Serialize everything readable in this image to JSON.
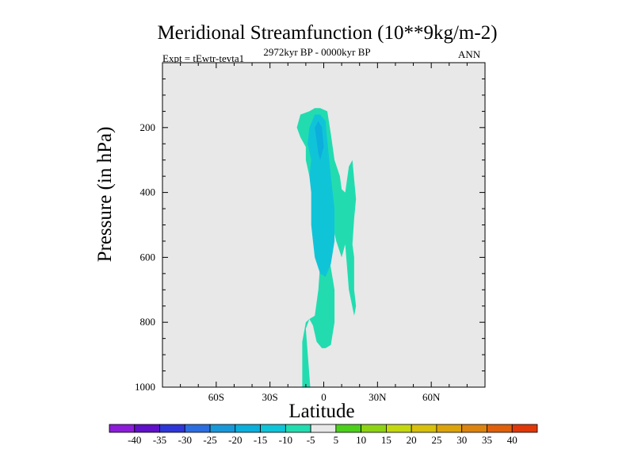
{
  "chart_data": {
    "type": "contour",
    "title": "Meridional Streamfunction (10**9kg/m-2)",
    "subtitle": "2972kyr BP - 0000kyr BP",
    "left_label": "Expt = tEwtr-tevta1",
    "right_label": "ANN",
    "xlabel": "Latitude",
    "ylabel": "Pressure (in hPa)",
    "xlim": [
      -90,
      90
    ],
    "ylim": [
      1000,
      0
    ],
    "x_ticks": [
      {
        "value": -60,
        "label": "60S"
      },
      {
        "value": -30,
        "label": "30S"
      },
      {
        "value": 0,
        "label": "0"
      },
      {
        "value": 30,
        "label": "30N"
      },
      {
        "value": 60,
        "label": "60N"
      }
    ],
    "y_ticks": [
      {
        "value": 200,
        "label": "200"
      },
      {
        "value": 400,
        "label": "400"
      },
      {
        "value": 600,
        "label": "600"
      },
      {
        "value": 800,
        "label": "800"
      },
      {
        "value": 1000,
        "label": "1000"
      }
    ],
    "background_color": "#e8e8e8",
    "regions": [
      {
        "name": "-10 to -5",
        "color": "#22dcb0",
        "points": [
          [
            -12,
            1000
          ],
          [
            -9.5,
            1000
          ],
          [
            -10,
            1060
          ],
          [
            -7.5,
            1000
          ],
          [
            -10,
            820
          ],
          [
            -8,
            790
          ],
          [
            -5,
            780
          ],
          [
            -3,
            700
          ],
          [
            -2,
            620
          ],
          [
            0,
            570
          ],
          [
            -2,
            500
          ],
          [
            -5,
            400
          ],
          [
            -8,
            350
          ],
          [
            -10,
            300
          ],
          [
            -10,
            260
          ],
          [
            -13,
            230
          ],
          [
            -15,
            200
          ],
          [
            -13,
            160
          ],
          [
            -8,
            150
          ],
          [
            -5,
            140
          ],
          [
            -2,
            140
          ],
          [
            2,
            150
          ],
          [
            4,
            220
          ],
          [
            6,
            300
          ],
          [
            9,
            350
          ],
          [
            10,
            390
          ],
          [
            12,
            400
          ],
          [
            14,
            320
          ],
          [
            16,
            300
          ],
          [
            17,
            360
          ],
          [
            18,
            420
          ],
          [
            17,
            480
          ],
          [
            16,
            560
          ],
          [
            17,
            600
          ],
          [
            17,
            640
          ],
          [
            17,
            700
          ],
          [
            18,
            750
          ],
          [
            17,
            780
          ],
          [
            14,
            700
          ],
          [
            12,
            560
          ],
          [
            10,
            600
          ],
          [
            7,
            550
          ],
          [
            4,
            480
          ],
          [
            2,
            470
          ],
          [
            3,
            600
          ],
          [
            6,
            700
          ],
          [
            6,
            800
          ],
          [
            4,
            870
          ],
          [
            1,
            880
          ],
          [
            -1,
            880
          ],
          [
            -4,
            860
          ],
          [
            -6,
            810
          ],
          [
            -8,
            790
          ],
          [
            -10,
            800
          ],
          [
            -12,
            860
          ]
        ]
      },
      {
        "name": "-15 to -10",
        "color": "#10c4d8",
        "points": [
          [
            -6,
            550
          ],
          [
            -7,
            500
          ],
          [
            -7,
            400
          ],
          [
            -8,
            350
          ],
          [
            -7,
            300
          ],
          [
            -9,
            250
          ],
          [
            -8,
            200
          ],
          [
            -5,
            160
          ],
          [
            -2,
            160
          ],
          [
            1,
            180
          ],
          [
            2,
            240
          ],
          [
            4,
            350
          ],
          [
            6,
            450
          ],
          [
            6,
            550
          ],
          [
            4,
            620
          ],
          [
            1,
            660
          ],
          [
            -2,
            650
          ],
          [
            -5,
            600
          ]
        ]
      },
      {
        "name": "-20 to -15",
        "color": "#0caedc",
        "points": [
          [
            -5,
            200
          ],
          [
            -3,
            180
          ],
          [
            -1,
            200
          ],
          [
            0,
            260
          ],
          [
            -2,
            300
          ],
          [
            -3,
            280
          ]
        ]
      }
    ],
    "colorbar": {
      "levels": [
        -40,
        -35,
        -30,
        -25,
        -20,
        -15,
        -10,
        -5,
        5,
        10,
        15,
        20,
        25,
        30,
        35,
        40
      ],
      "colors": [
        "#8c1cd8",
        "#6010c8",
        "#2e36d8",
        "#2c6ee0",
        "#1898d8",
        "#0caedc",
        "#10c4d8",
        "#22dcb0",
        "#e8e8e8",
        "#4cd01c",
        "#8ed414",
        "#c4d810",
        "#d8c00c",
        "#dca40c",
        "#dc8410",
        "#e0600c",
        "#e0380a"
      ]
    }
  }
}
